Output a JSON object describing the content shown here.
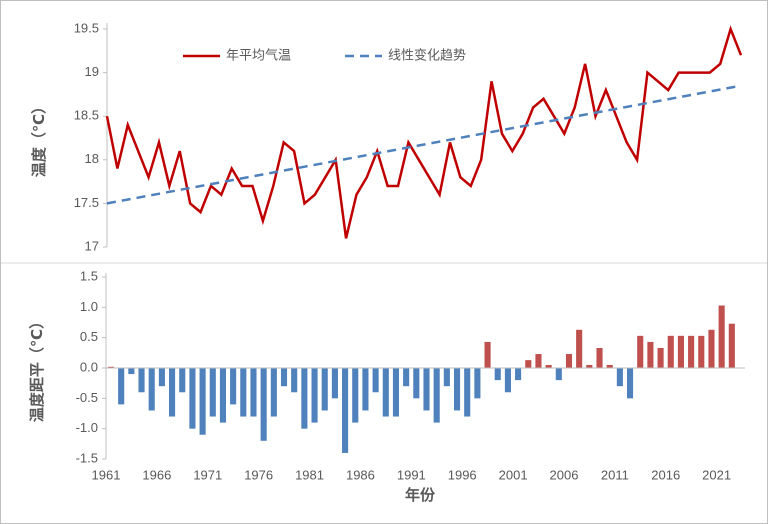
{
  "chart_data": [
    {
      "type": "line",
      "ylabel": "温度（℃）",
      "x": [
        1961,
        1962,
        1963,
        1964,
        1965,
        1966,
        1967,
        1968,
        1969,
        1970,
        1971,
        1972,
        1973,
        1974,
        1975,
        1976,
        1977,
        1978,
        1979,
        1980,
        1981,
        1982,
        1983,
        1984,
        1985,
        1986,
        1987,
        1988,
        1989,
        1990,
        1991,
        1992,
        1993,
        1994,
        1995,
        1996,
        1997,
        1998,
        1999,
        2000,
        2001,
        2002,
        2003,
        2004,
        2005,
        2006,
        2007,
        2008,
        2009,
        2010,
        2011,
        2012,
        2013,
        2014,
        2015,
        2016,
        2017,
        2018,
        2019,
        2020,
        2021,
        2022
      ],
      "xlim": [
        1961,
        2022
      ],
      "ylim": [
        17,
        19.5
      ],
      "yticks": [
        17,
        {
          "value": 17.5,
          "label": "17.5"
        },
        18,
        {
          "value": 18.5,
          "label": "18.5"
        },
        19,
        {
          "value": 19.5,
          "label": "19.5"
        }
      ],
      "series": [
        {
          "name": "年平均气温",
          "color": "#c00000",
          "values": [
            18.5,
            17.9,
            18.4,
            18.1,
            17.8,
            18.2,
            17.7,
            18.1,
            17.5,
            17.4,
            17.7,
            17.6,
            17.9,
            17.7,
            17.7,
            17.3,
            17.7,
            18.2,
            18.1,
            17.5,
            17.6,
            17.8,
            18.0,
            17.1,
            17.6,
            17.8,
            18.1,
            17.7,
            17.7,
            18.2,
            18.0,
            17.8,
            17.6,
            18.2,
            17.8,
            17.7,
            18.0,
            18.9,
            18.3,
            18.1,
            18.3,
            18.6,
            18.7,
            18.5,
            18.3,
            18.6,
            19.1,
            18.5,
            18.8,
            18.5,
            18.2,
            18.0,
            19.0,
            18.9,
            18.8,
            19.0,
            19.0,
            19.0,
            19.0,
            19.1,
            19.5,
            19.2
          ]
        },
        {
          "name": "线性变化趋势",
          "color": "#4f81bd",
          "dashed": true,
          "x": [
            1961,
            2022
          ],
          "values": [
            17.5,
            18.85
          ]
        }
      ]
    },
    {
      "type": "bar",
      "ylabel": "温度距平（℃）",
      "xlabel": "年份",
      "x": [
        1961,
        1962,
        1963,
        1964,
        1965,
        1966,
        1967,
        1968,
        1969,
        1970,
        1971,
        1972,
        1973,
        1974,
        1975,
        1976,
        1977,
        1978,
        1979,
        1980,
        1981,
        1982,
        1983,
        1984,
        1985,
        1986,
        1987,
        1988,
        1989,
        1990,
        1991,
        1992,
        1993,
        1994,
        1995,
        1996,
        1997,
        1998,
        1999,
        2000,
        2001,
        2002,
        2003,
        2004,
        2005,
        2006,
        2007,
        2008,
        2009,
        2010,
        2011,
        2012,
        2013,
        2014,
        2015,
        2016,
        2017,
        2018,
        2019,
        2020,
        2021,
        2022
      ],
      "values": [
        0.02,
        -0.6,
        -0.1,
        -0.4,
        -0.7,
        -0.3,
        -0.8,
        -0.4,
        -1.0,
        -1.1,
        -0.8,
        -0.9,
        -0.6,
        -0.8,
        -0.8,
        -1.2,
        -0.8,
        -0.3,
        -0.4,
        -1.0,
        -0.9,
        -0.7,
        -0.5,
        -1.4,
        -0.9,
        -0.7,
        -0.4,
        -0.8,
        -0.8,
        -0.3,
        -0.5,
        -0.7,
        -0.9,
        -0.3,
        -0.7,
        -0.8,
        -0.5,
        0.43,
        -0.2,
        -0.4,
        -0.2,
        0.13,
        0.23,
        0.05,
        -0.2,
        0.23,
        0.63,
        0.05,
        0.33,
        0.05,
        -0.3,
        -0.5,
        0.53,
        0.43,
        0.33,
        0.53,
        0.53,
        0.53,
        0.53,
        0.63,
        1.03,
        0.73
      ],
      "positive_color": "#c0504d",
      "negative_color": "#4f81bd",
      "xlim": [
        1961,
        2023
      ],
      "xticks": [
        1961,
        1966,
        1971,
        1976,
        1981,
        1986,
        1991,
        1996,
        2001,
        2006,
        2011,
        2016,
        2021
      ],
      "ylim": [
        -1.5,
        1.5
      ],
      "yticks": [
        {
          "value": -1.5,
          "label": "-1.5"
        },
        {
          "value": -1,
          "label": "-1.0"
        },
        {
          "value": -0.5,
          "label": "-0.5"
        },
        {
          "value": 0,
          "label": "0.0"
        },
        {
          "value": 0.5,
          "label": "0.5"
        },
        {
          "value": 1,
          "label": "1.0"
        },
        {
          "value": 1.5,
          "label": "1.5"
        }
      ]
    }
  ]
}
